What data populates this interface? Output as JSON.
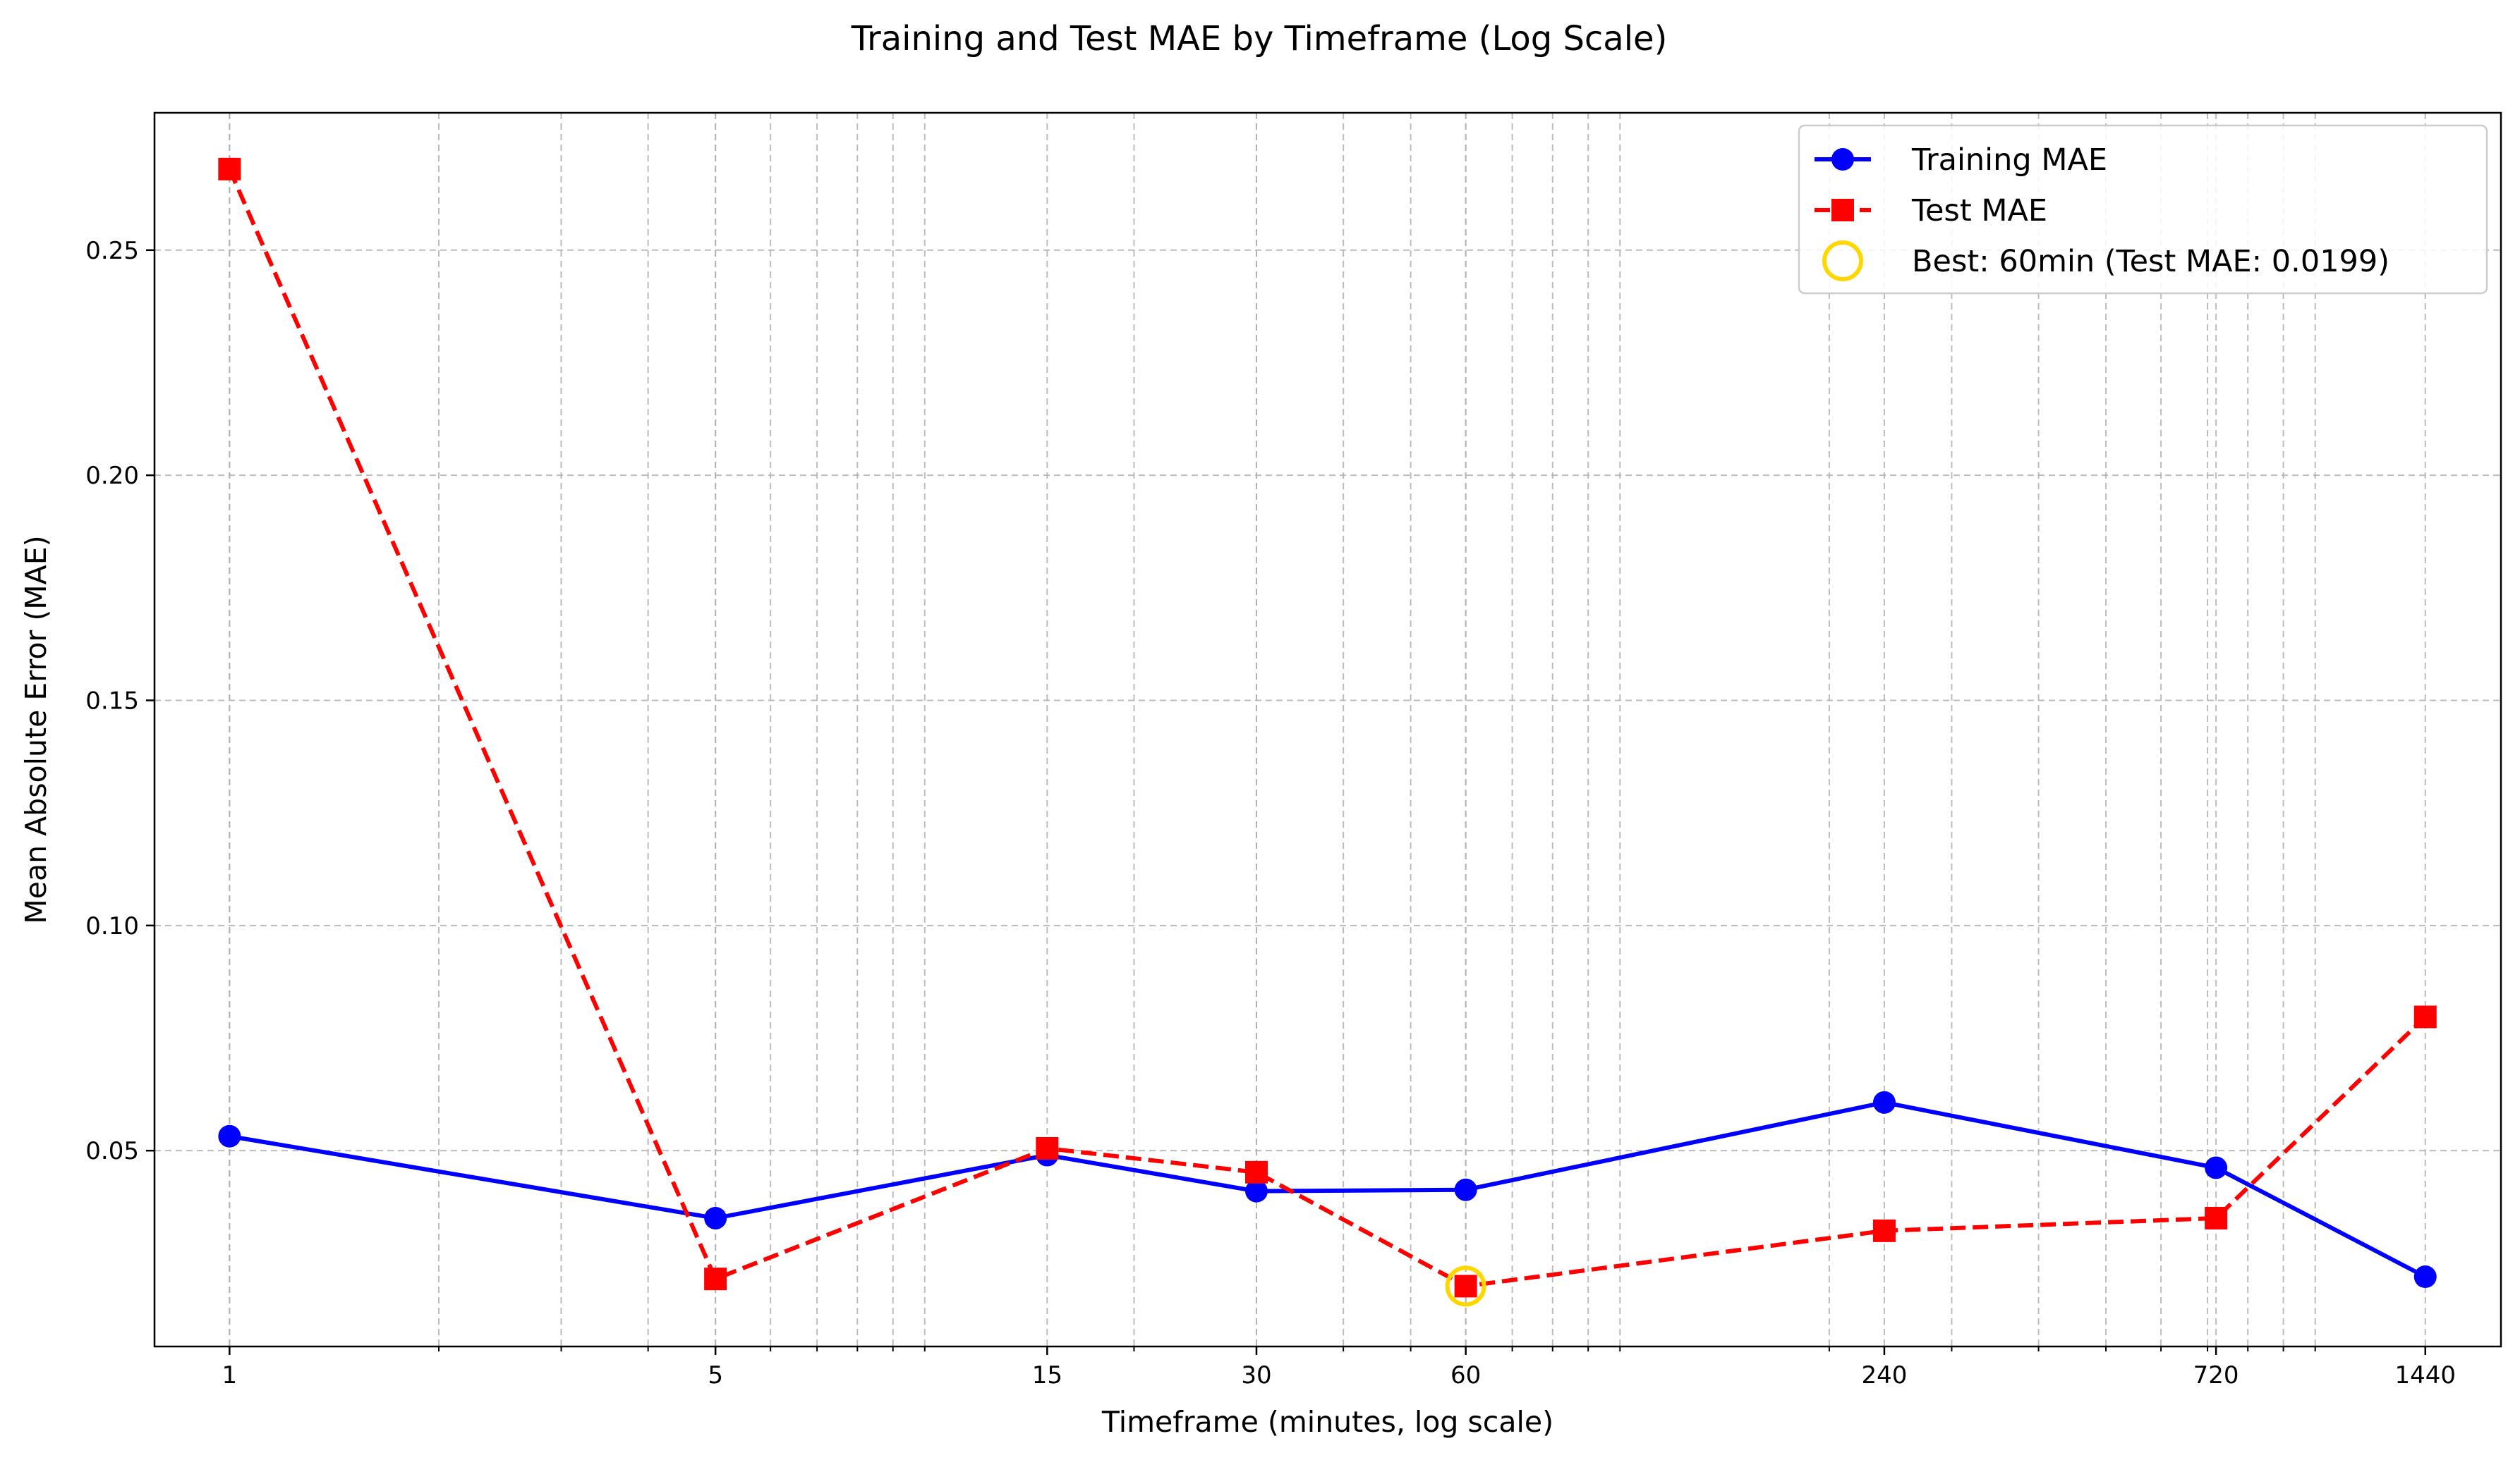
{
  "chart_data": {
    "type": "line",
    "title": "Training and Test MAE by Timeframe (Log Scale)",
    "xlabel": "Timeframe (minutes, log scale)",
    "ylabel": "Mean Absolute Error (MAE)",
    "x_scale": "log",
    "x": [
      1,
      5,
      15,
      30,
      60,
      240,
      720,
      1440
    ],
    "xtick_labels": [
      "1",
      "5",
      "15",
      "30",
      "60",
      "240",
      "720",
      "1440"
    ],
    "yticks": [
      0.05,
      0.1,
      0.15,
      0.2,
      0.25
    ],
    "ytick_labels": [
      "0.05",
      "0.10",
      "0.15",
      "0.20",
      "0.25"
    ],
    "xlim": [
      0.78,
      1850
    ],
    "ylim": [
      0.0065,
      0.2805
    ],
    "grid": true,
    "legend_position": "top-right",
    "series": [
      {
        "name": "Training MAE",
        "color": "#0000ff",
        "line_style": "solid",
        "marker": "circle",
        "values": [
          0.0532,
          0.035,
          0.049,
          0.041,
          0.0413,
          0.0607,
          0.0462,
          0.022
        ]
      },
      {
        "name": "Test MAE",
        "color": "#ff0000",
        "line_style": "dashed",
        "marker": "square",
        "values": [
          0.268,
          0.0215,
          0.0505,
          0.0452,
          0.0199,
          0.0322,
          0.035,
          0.0797
        ]
      }
    ],
    "annotations": [
      {
        "label": "Best: 60min (Test MAE: 0.0199)",
        "x": 60,
        "y": 0.0199,
        "color": "#ffd700",
        "marker": "hollow-circle"
      }
    ]
  }
}
